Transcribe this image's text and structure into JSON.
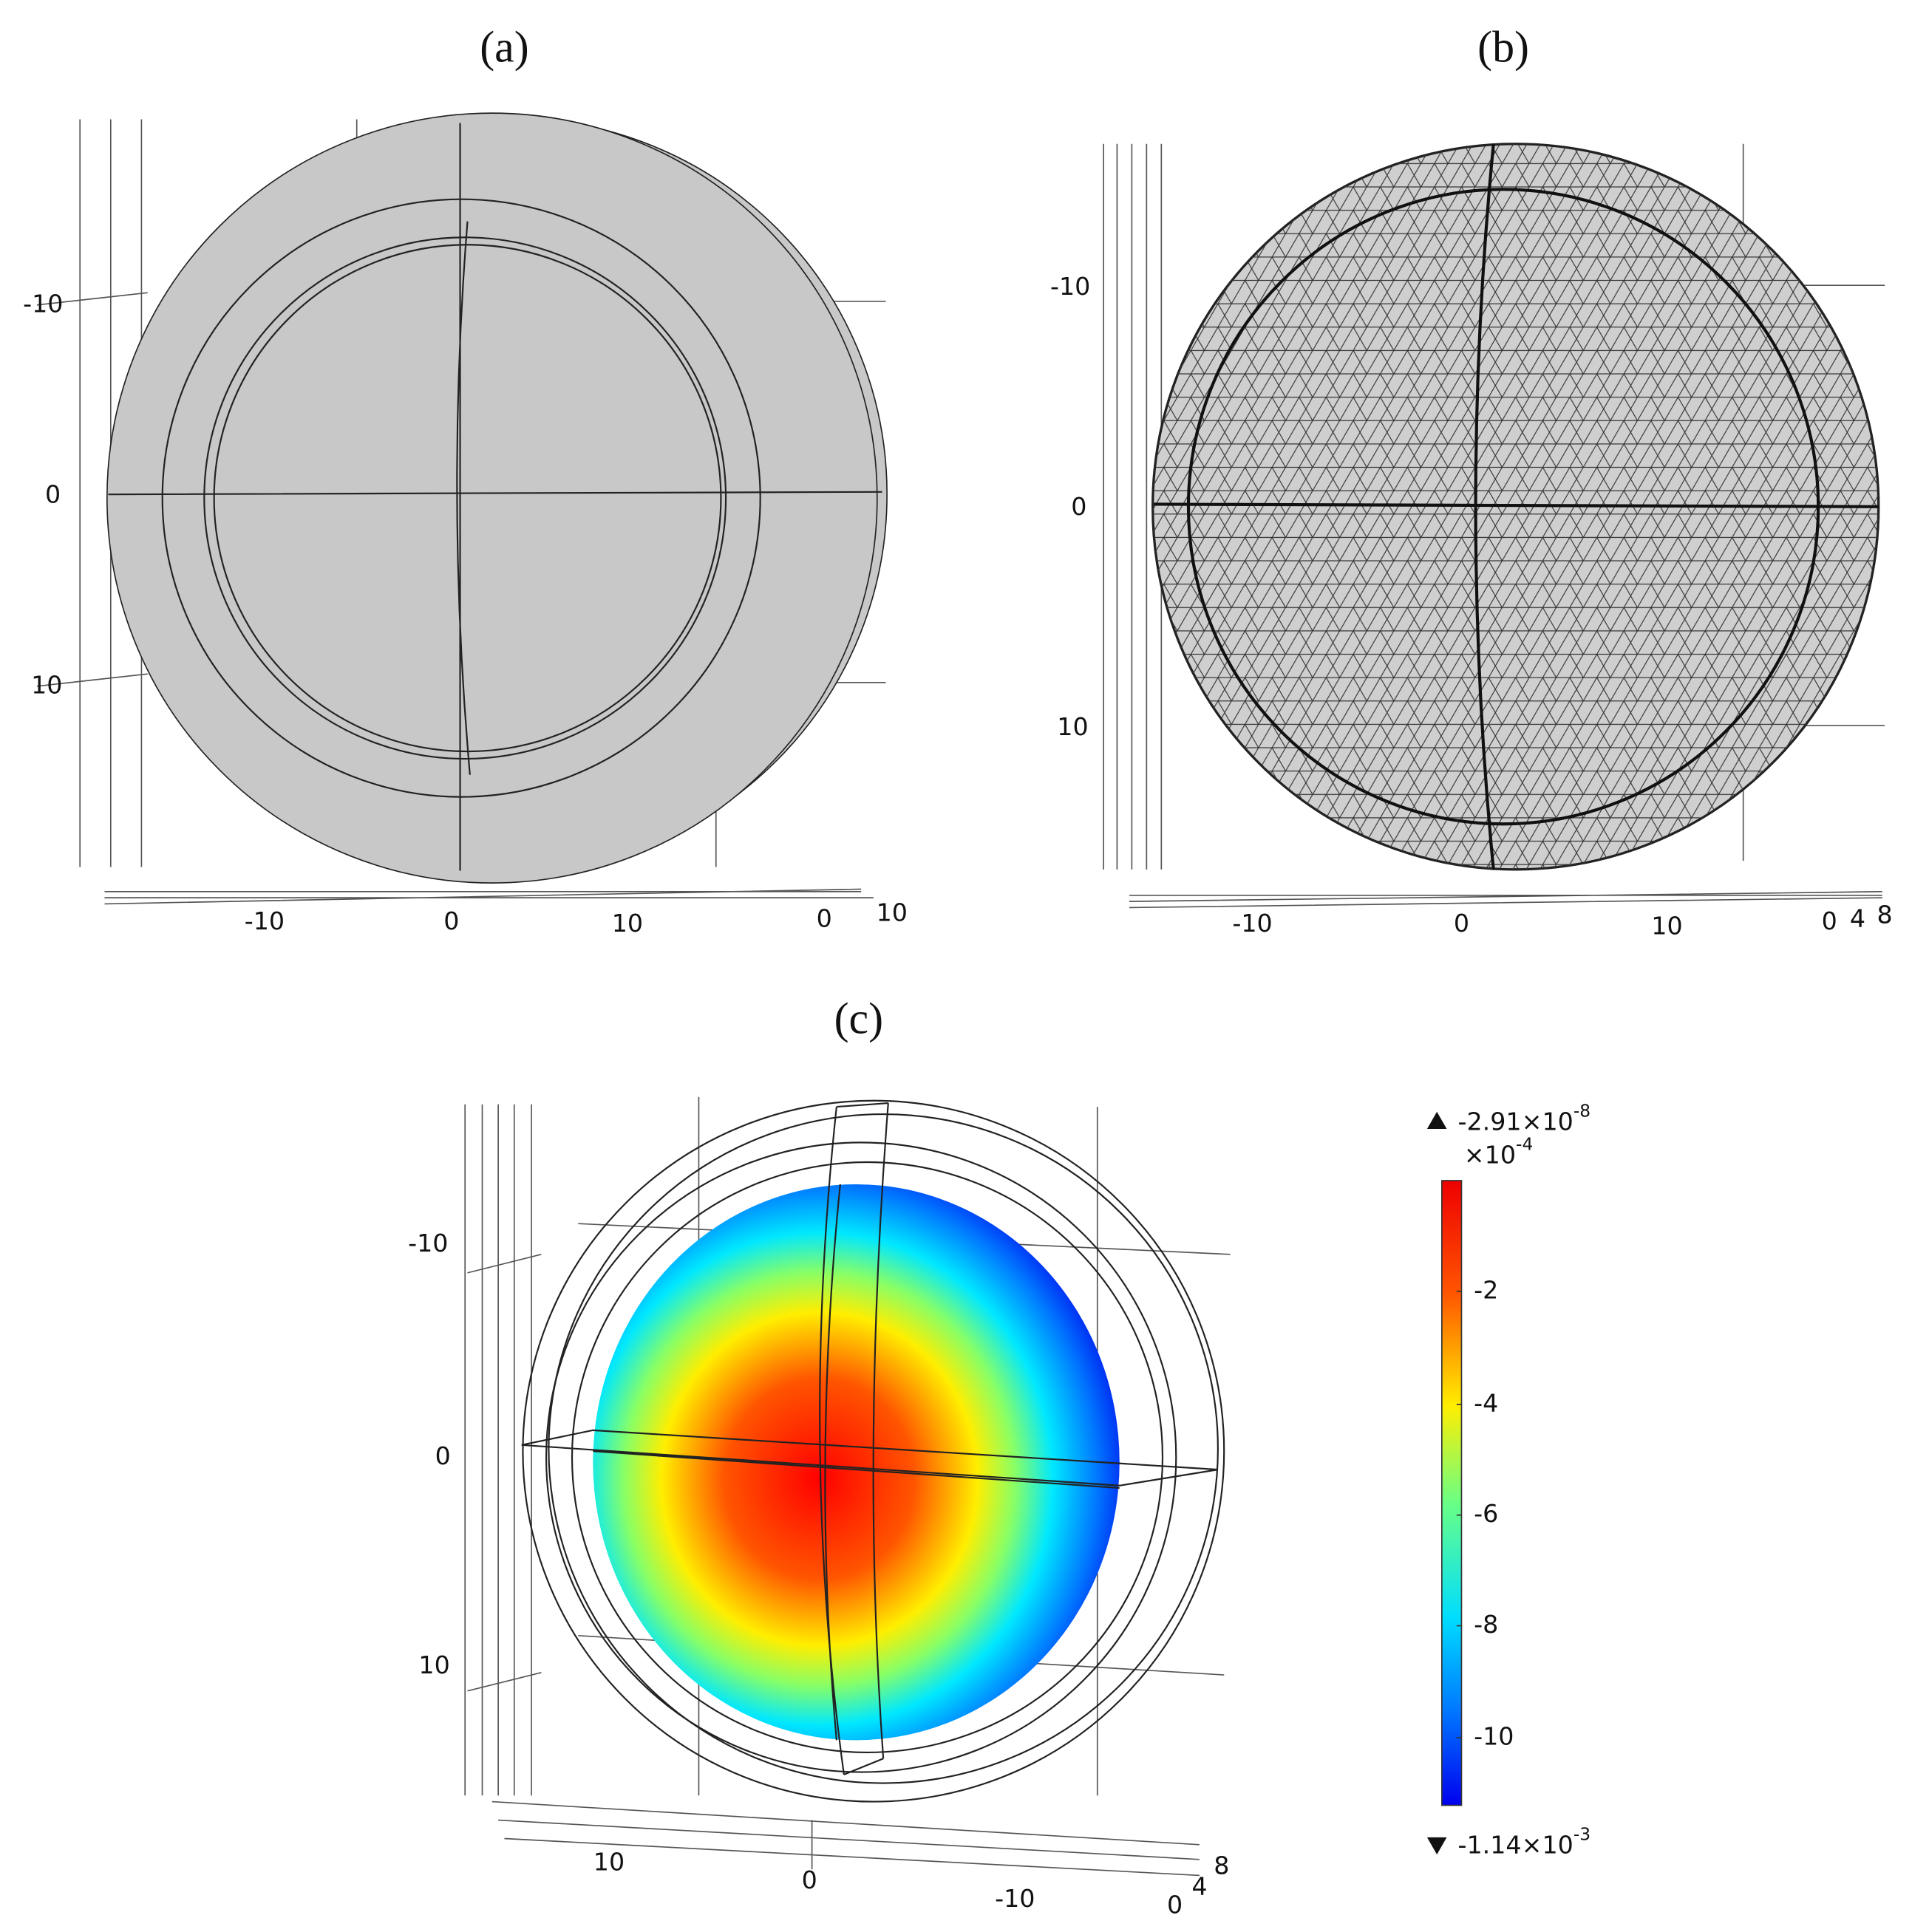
{
  "panels": [
    {
      "label": "(a)",
      "y_ticks": [
        "-10",
        "0",
        "10"
      ],
      "x_ticks": [
        "-10",
        "0",
        "10"
      ],
      "z_ticks": [
        "0",
        "10"
      ]
    },
    {
      "label": "(b)",
      "y_ticks": [
        "-10",
        "0",
        "10"
      ],
      "x_ticks": [
        "-10",
        "0",
        "10"
      ],
      "z_ticks": [
        "0",
        "4",
        "8"
      ]
    },
    {
      "label": "(c)",
      "y_ticks": [
        "-10",
        "0",
        "10"
      ],
      "x_ticks": [
        "10",
        "0",
        "-10"
      ],
      "z_ticks": [
        "0",
        "4",
        "8"
      ]
    }
  ],
  "colorbar": {
    "max_label": {
      "text": "-2.91×10",
      "exp": "-8"
    },
    "multiplier": {
      "text": "×10",
      "exp": "-4"
    },
    "ticks": [
      "-2",
      "-4",
      "-6",
      "-8",
      "-10"
    ],
    "min_label": {
      "text": "-1.14×10",
      "exp": "-3"
    }
  }
}
